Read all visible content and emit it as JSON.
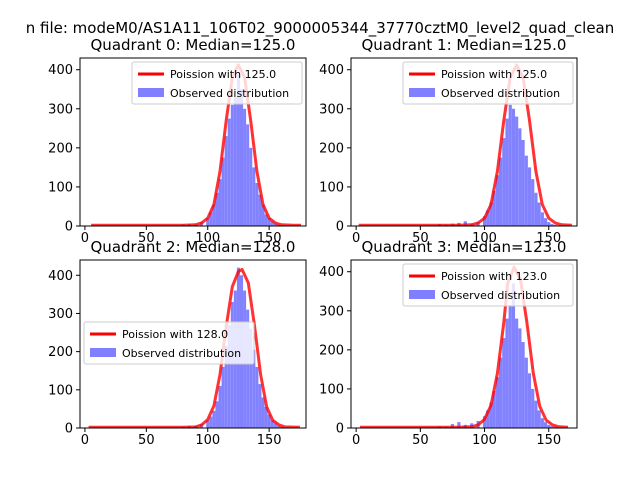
{
  "suptitle": "n file: modeM0/AS1A11_106T02_9000005344_37770cztM0_level2_quad_clean",
  "colors": {
    "poisson": "#ff0000",
    "observed": "#7f7fff"
  },
  "chart_data": [
    {
      "type": "bar",
      "title": "Quadrant 0: Median=125.0",
      "xticks": [
        0,
        50,
        100,
        150
      ],
      "yticks": [
        0,
        100,
        200,
        300,
        400
      ],
      "xlim": [
        -4,
        180
      ],
      "ylim": [
        0,
        430
      ],
      "legend_placement": "top-right",
      "series": [
        {
          "name": "Poission with 125.0",
          "kind": "line",
          "x": [
            5,
            70,
            80,
            90,
            95,
            100,
            105,
            110,
            115,
            120,
            125,
            130,
            135,
            140,
            145,
            150,
            155,
            160,
            170,
            176
          ],
          "y": [
            2,
            2,
            2,
            3,
            8,
            20,
            55,
            140,
            270,
            380,
            412,
            380,
            270,
            140,
            55,
            20,
            8,
            3,
            2,
            2
          ]
        },
        {
          "name": "Observed distribution",
          "kind": "histogram",
          "x": [
            80,
            85,
            90,
            95,
            100,
            102.5,
            105,
            107.5,
            110,
            112.5,
            115,
            117.5,
            120,
            122.5,
            125,
            127.5,
            130,
            132.5,
            135,
            137.5,
            140,
            142.5,
            145,
            147.5,
            150,
            152.5,
            155,
            157.5,
            160
          ],
          "y": [
            4,
            5,
            4,
            10,
            20,
            35,
            55,
            85,
            120,
            175,
            230,
            275,
            310,
            330,
            390,
            350,
            300,
            260,
            200,
            150,
            110,
            80,
            55,
            30,
            20,
            12,
            6,
            3,
            2
          ]
        }
      ]
    },
    {
      "type": "bar",
      "title": "Quadrant 1: Median=125.0",
      "xticks": [
        0,
        50,
        100,
        150
      ],
      "yticks": [
        0,
        100,
        200,
        300,
        400
      ],
      "xlim": [
        -4,
        172
      ],
      "ylim": [
        0,
        430
      ],
      "legend_placement": "top-right",
      "series": [
        {
          "name": "Poission with 125.0",
          "kind": "line",
          "x": [
            2,
            70,
            80,
            90,
            95,
            100,
            105,
            110,
            115,
            120,
            125,
            130,
            135,
            140,
            145,
            150,
            155,
            160,
            168
          ],
          "y": [
            2,
            2,
            2,
            3,
            8,
            20,
            55,
            140,
            270,
            380,
            412,
            380,
            270,
            140,
            55,
            20,
            8,
            3,
            2
          ]
        },
        {
          "name": "Observed distribution",
          "kind": "histogram",
          "x": [
            65,
            70,
            75,
            80,
            85,
            90,
            95,
            100,
            102.5,
            105,
            107.5,
            110,
            112.5,
            115,
            117.5,
            120,
            122.5,
            125,
            127.5,
            130,
            132.5,
            135,
            137.5,
            140,
            142.5,
            145,
            147.5,
            150,
            152.5,
            155
          ],
          "y": [
            5,
            3,
            6,
            8,
            12,
            6,
            10,
            25,
            40,
            60,
            90,
            130,
            175,
            225,
            275,
            310,
            300,
            280,
            250,
            220,
            180,
            150,
            120,
            85,
            60,
            35,
            20,
            10,
            5,
            3
          ]
        }
      ]
    },
    {
      "type": "bar",
      "title": "Quadrant 2: Median=128.0",
      "xticks": [
        0,
        50,
        100,
        150
      ],
      "yticks": [
        0,
        100,
        200,
        300,
        400
      ],
      "xlim": [
        -4,
        180
      ],
      "ylim": [
        0,
        440
      ],
      "legend_placement": "center-left",
      "series": [
        {
          "name": "Poission with 128.0",
          "kind": "line",
          "x": [
            3,
            80,
            90,
            95,
            100,
            105,
            110,
            115,
            120,
            125,
            128,
            133,
            138,
            143,
            148,
            153,
            158,
            163,
            175
          ],
          "y": [
            2,
            2,
            3,
            8,
            22,
            58,
            140,
            265,
            370,
            410,
            415,
            380,
            270,
            140,
            55,
            20,
            8,
            3,
            2
          ]
        },
        {
          "name": "Observed distribution",
          "kind": "histogram",
          "x": [
            80,
            85,
            90,
            95,
            100,
            102.5,
            105,
            107.5,
            110,
            112.5,
            115,
            117.5,
            120,
            122.5,
            125,
            127.5,
            130,
            132.5,
            135,
            137.5,
            140,
            142.5,
            145,
            147.5,
            150,
            152.5,
            155,
            157.5,
            160
          ],
          "y": [
            3,
            5,
            6,
            10,
            20,
            30,
            45,
            70,
            110,
            160,
            215,
            270,
            330,
            360,
            420,
            400,
            360,
            310,
            260,
            205,
            160,
            115,
            80,
            55,
            35,
            20,
            12,
            6,
            3
          ]
        }
      ]
    },
    {
      "type": "bar",
      "title": "Quadrant 3: Median=123.0",
      "xticks": [
        0,
        50,
        100,
        150
      ],
      "yticks": [
        0,
        100,
        200,
        300,
        400
      ],
      "xlim": [
        -4,
        172
      ],
      "ylim": [
        0,
        430
      ],
      "legend_placement": "top-right",
      "series": [
        {
          "name": "Poission with 123.0",
          "kind": "line",
          "x": [
            3,
            70,
            80,
            90,
            95,
            100,
            105,
            110,
            115,
            118,
            123,
            128,
            133,
            138,
            143,
            148,
            153,
            158,
            165
          ],
          "y": [
            2,
            2,
            2,
            3,
            8,
            22,
            58,
            140,
            270,
            370,
            412,
            380,
            270,
            140,
            55,
            20,
            8,
            3,
            2
          ]
        },
        {
          "name": "Observed distribution",
          "kind": "histogram",
          "x": [
            65,
            70,
            75,
            80,
            85,
            90,
            95,
            100,
            102.5,
            105,
            107.5,
            110,
            112.5,
            115,
            117.5,
            120,
            122.5,
            125,
            127.5,
            130,
            132.5,
            135,
            137.5,
            140,
            142.5,
            145,
            147.5,
            150,
            152.5,
            155
          ],
          "y": [
            4,
            3,
            10,
            15,
            8,
            12,
            18,
            30,
            45,
            65,
            95,
            130,
            180,
            230,
            280,
            315,
            370,
            280,
            255,
            220,
            180,
            140,
            100,
            70,
            45,
            25,
            15,
            8,
            5,
            3
          ]
        }
      ]
    }
  ]
}
